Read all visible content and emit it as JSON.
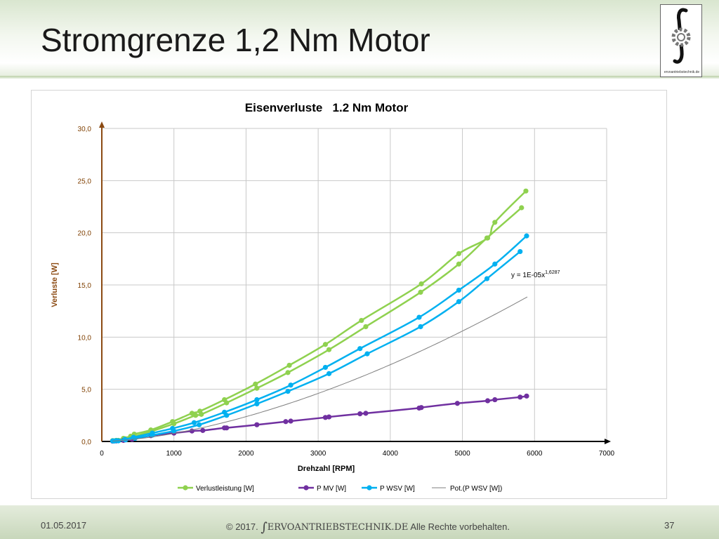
{
  "slide": {
    "title": "Stromgrenze 1,2 Nm Motor",
    "logo_text": "ervoantriebstechnik.de",
    "footer": {
      "date": "01.05.2017",
      "copyright": "© 2017.",
      "brand": "ERVOANTRIEBSTECHNIK.DE",
      "rights": "Alle Rechte vorbehalten.",
      "page": "37"
    }
  },
  "chart_data": {
    "type": "line",
    "title": "Eisenverluste   1.2 Nm Motor",
    "xlabel": "Drehzahl [RPM]",
    "ylabel": "Verluste [W]",
    "xlim": [
      0,
      7000
    ],
    "ylim": [
      0,
      30
    ],
    "x_ticks": [
      "0",
      "1000",
      "2000",
      "3000",
      "4000",
      "5000",
      "6000",
      "7000"
    ],
    "y_ticks": [
      "0,0",
      "5,0",
      "10,0",
      "15,0",
      "20,0",
      "25,0",
      "30,0"
    ],
    "grid": true,
    "legend_position": "bottom",
    "trendline_label": "y = 1E-05x",
    "trendline_exponent": "1,6287",
    "series": [
      {
        "name": "Verlustleistung [W]",
        "color": "#8fd14f",
        "points": [
          [
            150,
            0.08
          ],
          [
            200,
            0.1
          ],
          [
            300,
            0.3
          ],
          [
            400,
            0.5
          ],
          [
            450,
            0.7
          ],
          [
            680,
            1.1
          ],
          [
            980,
            1.9
          ],
          [
            1250,
            2.7
          ],
          [
            1360,
            2.9
          ],
          [
            1700,
            4.0
          ],
          [
            2130,
            5.5
          ],
          [
            2600,
            7.3
          ],
          [
            3100,
            9.3
          ],
          [
            3600,
            11.6
          ],
          [
            4430,
            15.1
          ],
          [
            4950,
            18.0
          ],
          [
            5350,
            19.5
          ],
          [
            5450,
            21.0
          ],
          [
            5880,
            24.0
          ]
        ]
      },
      {
        "name": "Verlustleistung [W]",
        "color": "#8fd14f",
        "hide_legend": true,
        "points": [
          [
            180,
            0.05
          ],
          [
            230,
            0.1
          ],
          [
            330,
            0.25
          ],
          [
            430,
            0.45
          ],
          [
            700,
            1.0
          ],
          [
            1000,
            1.7
          ],
          [
            1300,
            2.5
          ],
          [
            1380,
            2.6
          ],
          [
            1730,
            3.7
          ],
          [
            2150,
            5.1
          ],
          [
            2580,
            6.6
          ],
          [
            3150,
            8.8
          ],
          [
            3660,
            11.0
          ],
          [
            4420,
            14.3
          ],
          [
            4950,
            17.0
          ],
          [
            5340,
            19.5
          ],
          [
            5820,
            22.4
          ]
        ]
      },
      {
        "name": "P MV [W]",
        "color": "#7030a0",
        "points": [
          [
            150,
            0.03
          ],
          [
            200,
            0.05
          ],
          [
            300,
            0.1
          ],
          [
            420,
            0.2
          ],
          [
            680,
            0.55
          ],
          [
            1000,
            0.8
          ],
          [
            1250,
            1.0
          ],
          [
            1400,
            1.05
          ],
          [
            1700,
            1.3
          ],
          [
            1730,
            1.3
          ],
          [
            2150,
            1.6
          ],
          [
            2550,
            1.9
          ],
          [
            2620,
            1.95
          ],
          [
            3100,
            2.3
          ],
          [
            3150,
            2.35
          ],
          [
            3580,
            2.65
          ],
          [
            3660,
            2.7
          ],
          [
            4400,
            3.2
          ],
          [
            4430,
            3.25
          ],
          [
            4930,
            3.65
          ],
          [
            5350,
            3.9
          ],
          [
            5450,
            4.0
          ],
          [
            5800,
            4.25
          ],
          [
            5890,
            4.35
          ]
        ]
      },
      {
        "name": "P WSV [W]",
        "color": "#00b0f0",
        "points": [
          [
            150,
            0.05
          ],
          [
            200,
            0.08
          ],
          [
            320,
            0.2
          ],
          [
            440,
            0.4
          ],
          [
            700,
            0.8
          ],
          [
            980,
            1.25
          ],
          [
            1280,
            1.8
          ],
          [
            1700,
            2.8
          ],
          [
            2150,
            4.0
          ],
          [
            2620,
            5.4
          ],
          [
            3100,
            7.1
          ],
          [
            3580,
            8.9
          ],
          [
            4400,
            11.9
          ],
          [
            4950,
            14.5
          ],
          [
            5450,
            17.0
          ],
          [
            5890,
            19.7
          ]
        ]
      },
      {
        "name": "P WSV [W]",
        "color": "#00b0f0",
        "hide_legend": true,
        "points": [
          [
            170,
            0.04
          ],
          [
            230,
            0.06
          ],
          [
            330,
            0.15
          ],
          [
            460,
            0.3
          ],
          [
            700,
            0.6
          ],
          [
            1000,
            1.0
          ],
          [
            1350,
            1.6
          ],
          [
            1730,
            2.5
          ],
          [
            2150,
            3.6
          ],
          [
            2580,
            4.8
          ],
          [
            3150,
            6.5
          ],
          [
            3680,
            8.4
          ],
          [
            4420,
            11.0
          ],
          [
            4950,
            13.4
          ],
          [
            5340,
            15.6
          ],
          [
            5800,
            18.2
          ]
        ]
      },
      {
        "name": "Pot.(P WSV [W])",
        "color": "#7f7f7f",
        "trendline": true,
        "coef": 1e-05,
        "exponent": 1.6287,
        "x_range": [
          150,
          5900
        ]
      }
    ]
  }
}
